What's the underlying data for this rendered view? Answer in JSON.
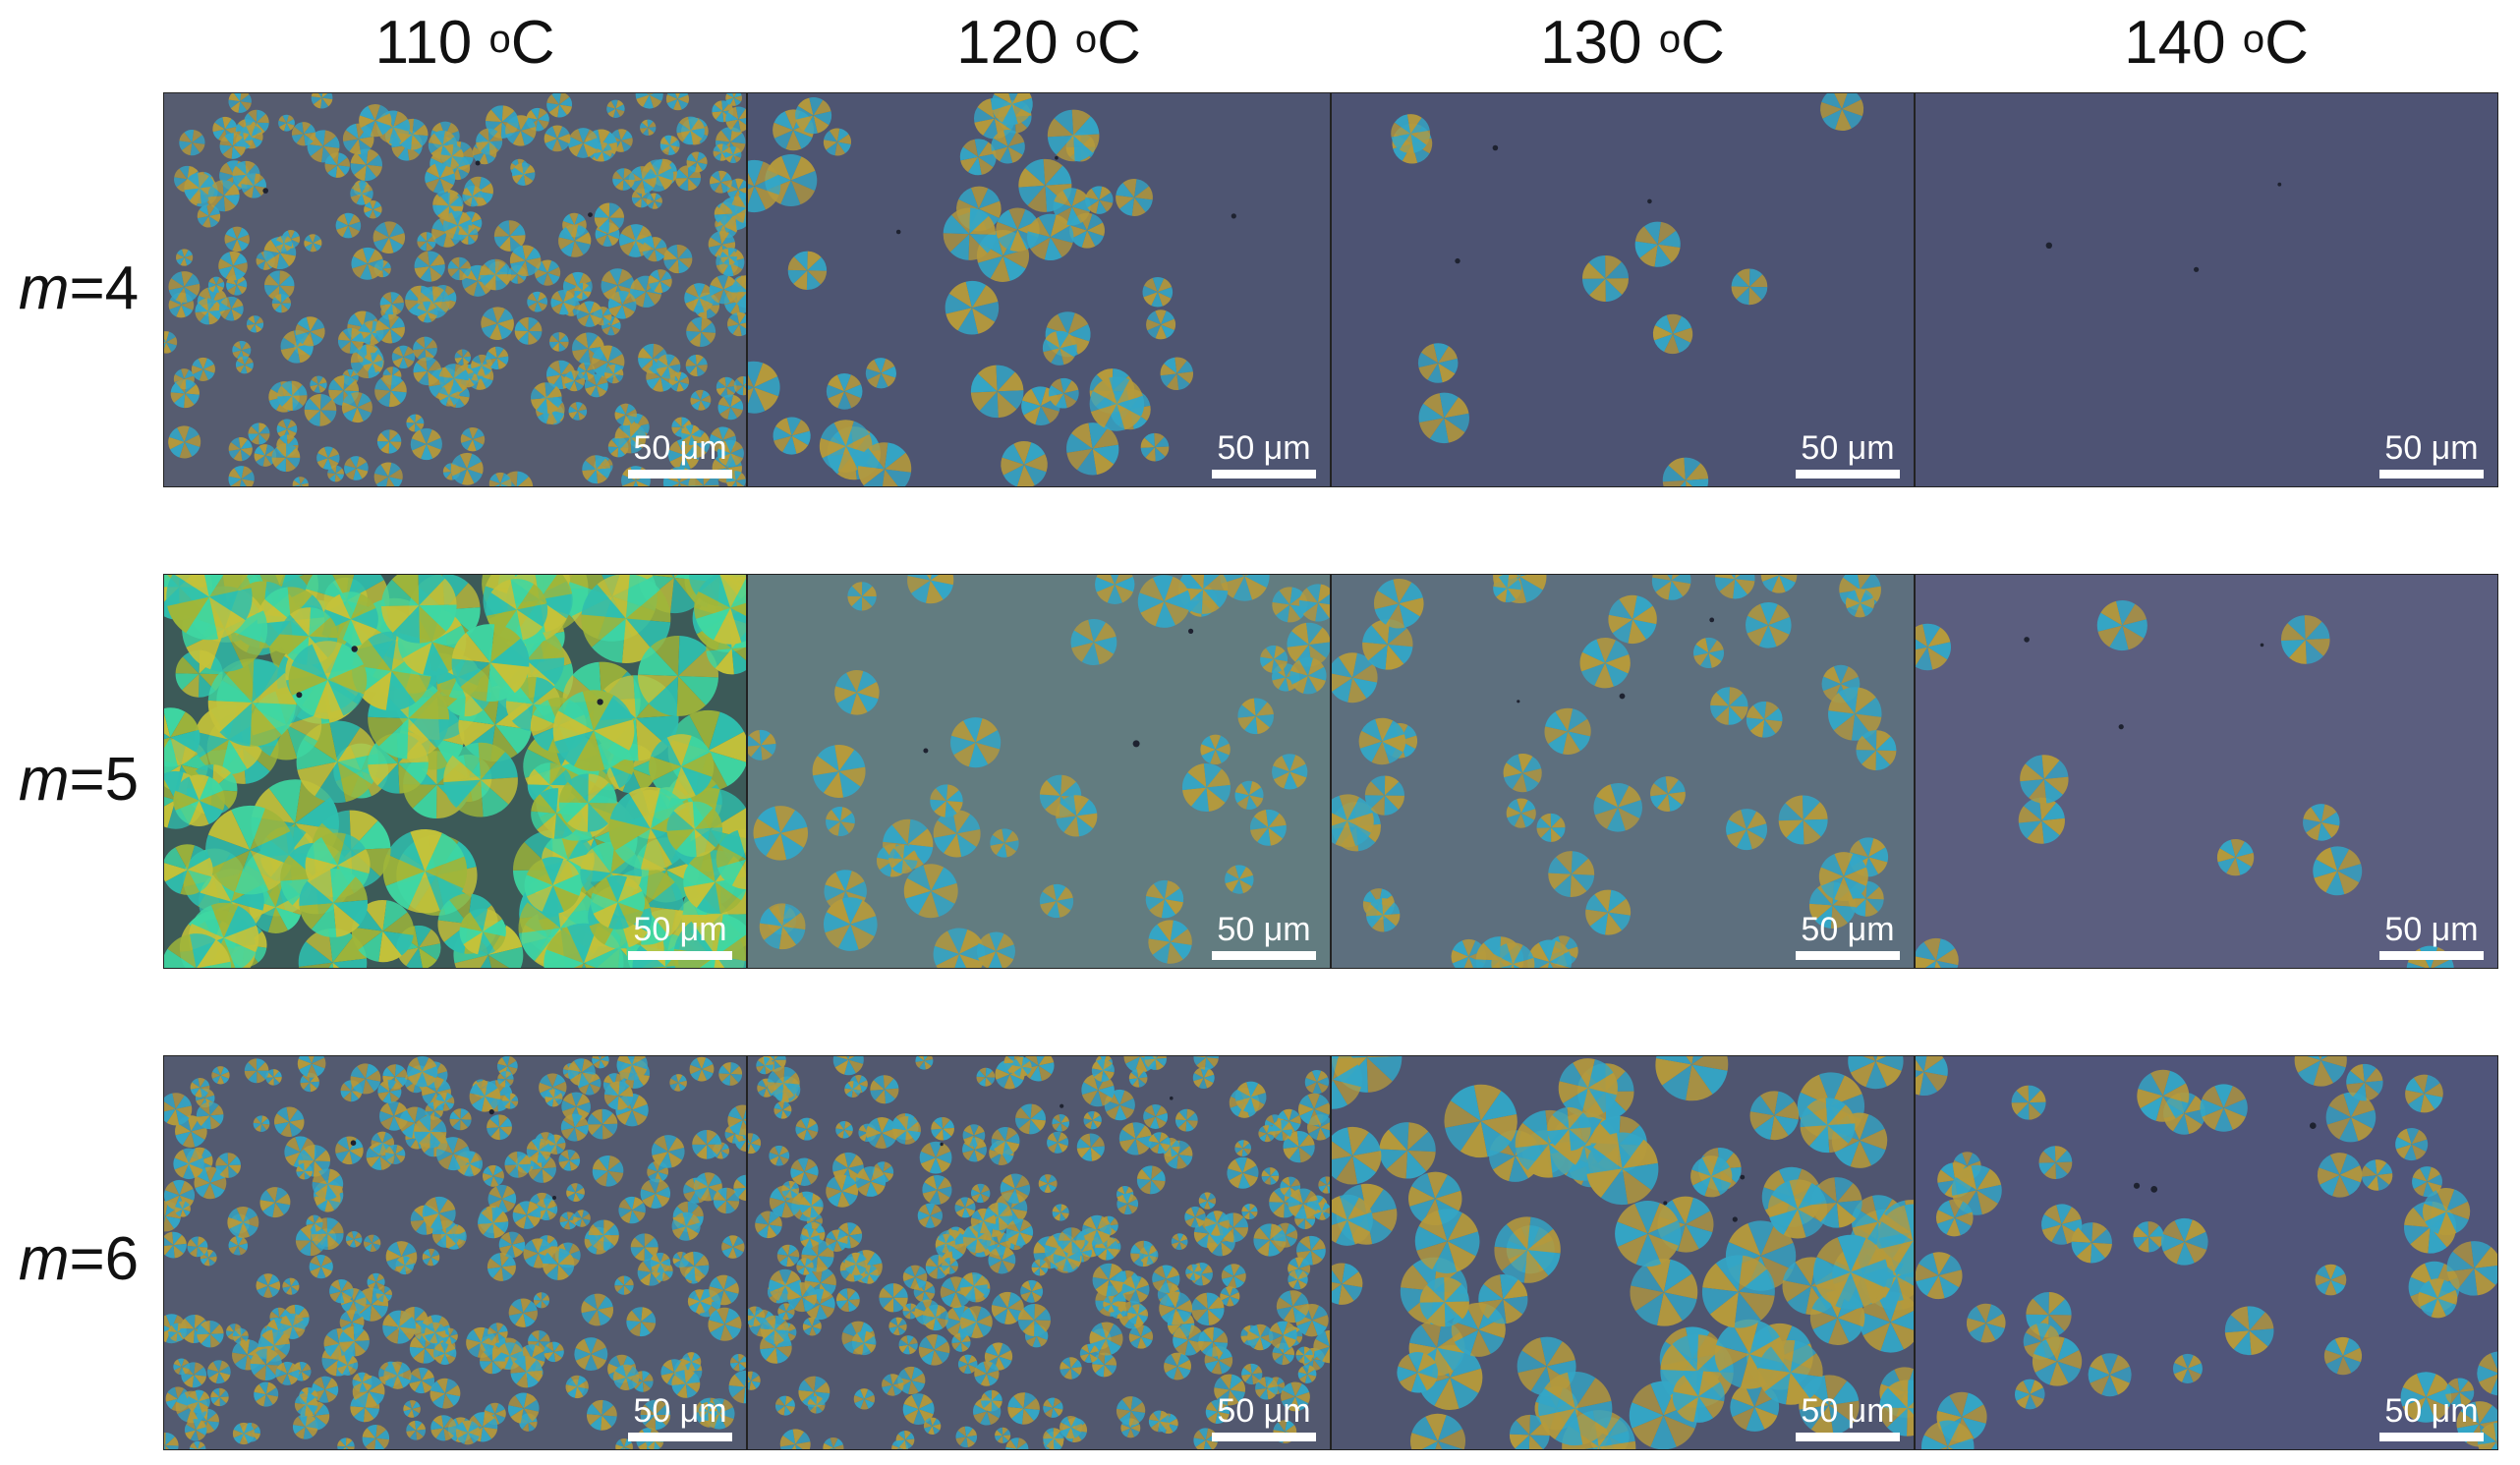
{
  "columns": [
    {
      "temp": "110 ",
      "unit_sup": "o",
      "unit": "C"
    },
    {
      "temp": "120 ",
      "unit_sup": "o",
      "unit": "C"
    },
    {
      "temp": "130 ",
      "unit_sup": "o",
      "unit": "C"
    },
    {
      "temp": "140 ",
      "unit_sup": "o",
      "unit": "C"
    }
  ],
  "rows": [
    {
      "var": "m",
      "eq": "=4"
    },
    {
      "var": "m",
      "eq": "=5"
    },
    {
      "var": "m",
      "eq": "=6"
    }
  ],
  "scale_bar_label": "50 μm",
  "colors": {
    "background_dark": "#51566f",
    "background_teal": "#5f7a7c",
    "spherulite_blue": "#34a6c6",
    "spherulite_gold": "#b59a3c",
    "spherulite_green": "#3fd7a2",
    "scale_bar": "#ffffff"
  },
  "panels": [
    {
      "row": 0,
      "col": 0,
      "bg": "#565c70",
      "density": "very-high",
      "size": "tiny"
    },
    {
      "row": 0,
      "col": 1,
      "bg": "#4e5572",
      "density": "medium",
      "size": "small"
    },
    {
      "row": 0,
      "col": 2,
      "bg": "#4d5373",
      "density": "low",
      "size": "small"
    },
    {
      "row": 0,
      "col": 3,
      "bg": "#4e5374",
      "density": "none",
      "size": "none"
    },
    {
      "row": 1,
      "col": 0,
      "bg": "#3c5a58",
      "density": "full",
      "size": "large-green"
    },
    {
      "row": 1,
      "col": 1,
      "bg": "#627c80",
      "density": "medium",
      "size": "large"
    },
    {
      "row": 1,
      "col": 2,
      "bg": "#5d6f7e",
      "density": "medium",
      "size": "medium"
    },
    {
      "row": 1,
      "col": 3,
      "bg": "#5b5e7f",
      "density": "low",
      "size": "medium"
    },
    {
      "row": 2,
      "col": 0,
      "bg": "#535a70",
      "density": "very-high",
      "size": "small"
    },
    {
      "row": 2,
      "col": 1,
      "bg": "#52586f",
      "density": "very-high",
      "size": "medium"
    },
    {
      "row": 2,
      "col": 2,
      "bg": "#4f5570",
      "density": "high",
      "size": "large"
    },
    {
      "row": 2,
      "col": 3,
      "bg": "#50557a",
      "density": "medium",
      "size": "medium"
    }
  ]
}
